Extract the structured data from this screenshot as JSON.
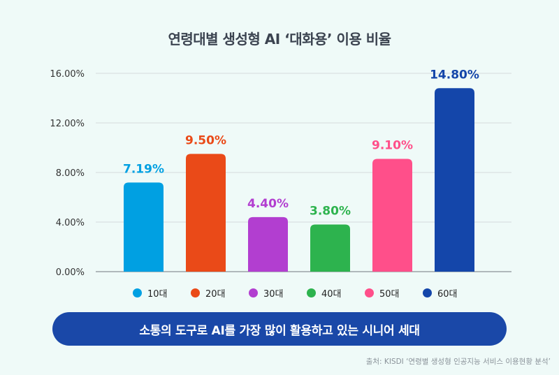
{
  "chart_data": {
    "type": "bar",
    "title": "연령대별 생성형 AI ‘대화용’ 이용 비율",
    "categories": [
      "10대",
      "20대",
      "30대",
      "40대",
      "50대",
      "60대"
    ],
    "values": [
      7.19,
      9.5,
      4.4,
      3.8,
      9.1,
      14.8
    ],
    "data_labels": [
      "7.19%",
      "9.50%",
      "4.40%",
      "3.80%",
      "9.10%",
      "14.80%"
    ],
    "colors": [
      "#00a0e2",
      "#ea4a18",
      "#b23ed0",
      "#2db34e",
      "#ff4f8a",
      "#1446aa"
    ],
    "ylim": [
      0,
      16
    ],
    "yticks": [
      0,
      4,
      8,
      12,
      16
    ],
    "ytick_labels": [
      "0.00%",
      "4.00%",
      "8.00%",
      "12.00%",
      "16.00%"
    ],
    "grid": true,
    "legend": "bottom"
  },
  "banner": "소통의 도구로 AI를 가장 많이 활용하고 있는 시니어 세대",
  "source": "출처: KISDI ‘연령별 생성형 인공지능 서비스 이용현황 분석’"
}
